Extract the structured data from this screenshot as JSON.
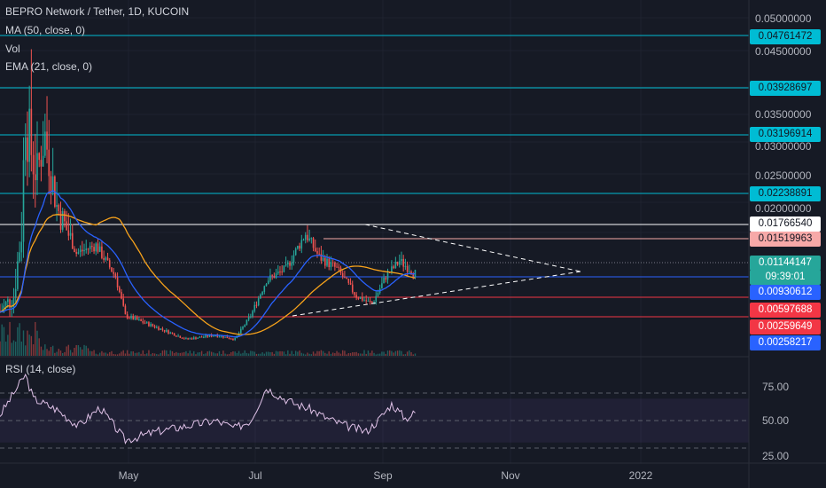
{
  "header": {
    "title": "BEPRO Network / Tether, 1D, KUCOIN",
    "indicators": [
      "MA (50, close, 0)",
      "Vol",
      "EMA (21, close, 0)"
    ],
    "rsi_label": "RSI (14, close)"
  },
  "colors": {
    "background": "#161a25",
    "up": "#26a69a",
    "down": "#ef5350",
    "ma": "#f7a21b",
    "ema": "#2962ff",
    "rsi": "#e0c2e8",
    "hline": "#00bcd4",
    "trend": "#ffffff"
  },
  "price_tags": [
    {
      "label": "0.04761472",
      "bg": "#00bcd4",
      "fg": "#131722"
    },
    {
      "label": "0.03928697",
      "bg": "#00bcd4",
      "fg": "#131722"
    },
    {
      "label": "0.03196914",
      "bg": "#00bcd4",
      "fg": "#131722"
    },
    {
      "label": "0.02238891",
      "bg": "#00bcd4",
      "fg": "#131722"
    },
    {
      "label": "0.01766540",
      "bg": "#ffffff",
      "fg": "#131722"
    },
    {
      "label": "0.01519963",
      "bg": "#f7a9a8",
      "fg": "#131722"
    },
    {
      "label": "0.01144147",
      "bg": "#26a69a",
      "fg": "#ffffff"
    },
    {
      "label": "09:39:01",
      "bg": "#26a69a",
      "fg": "#ffffff"
    },
    {
      "label": "0.00930612",
      "bg": "#2962ff",
      "fg": "#ffffff"
    },
    {
      "label": "0.00597688",
      "bg": "#f23645",
      "fg": "#ffffff"
    },
    {
      "label": "0.00259649",
      "bg": "#f23645",
      "fg": "#ffffff"
    },
    {
      "label": "0.00258217",
      "bg": "#2962ff",
      "fg": "#ffffff"
    }
  ],
  "chart_data": [
    {
      "type": "candlestick",
      "title": "BEPRO Network / Tether, 1D, KUCOIN",
      "y_ticks": [
        "0.05000000",
        "0.04500000",
        "0.03500000",
        "0.03000000",
        "0.02500000",
        "0.02000000"
      ],
      "x_ticks": [
        "May",
        "Jul",
        "Sep",
        "Nov",
        "2022"
      ],
      "price_range": [
        0.0,
        0.052
      ],
      "horizontal_levels": [
        {
          "value": 0.04761472,
          "color": "#00bcd4"
        },
        {
          "value": 0.03928697,
          "color": "#00bcd4"
        },
        {
          "value": 0.03196914,
          "color": "#00bcd4"
        },
        {
          "value": 0.02238891,
          "color": "#00bcd4"
        },
        {
          "value": 0.0176654,
          "color": "#ffffff"
        },
        {
          "value": 0.01519963,
          "color": "#f7a9a8"
        },
        {
          "value": 0.00930612,
          "color": "#2962ff"
        },
        {
          "value": 0.00597688,
          "color": "#f23645"
        },
        {
          "value": 0.00259649,
          "color": "#f23645"
        }
      ],
      "last_price": 0.01144147,
      "approx_close_path": [
        {
          "date": "2021-03-22",
          "close": 0.0065
        },
        {
          "date": "2021-03-29",
          "close": 0.0085
        },
        {
          "date": "2021-04-02",
          "close": 0.017
        },
        {
          "date": "2021-04-04",
          "close": 0.033
        },
        {
          "date": "2021-04-06",
          "close": 0.028
        },
        {
          "date": "2021-04-10",
          "close": 0.0245
        },
        {
          "date": "2021-04-14",
          "close": 0.029
        },
        {
          "date": "2021-04-20",
          "close": 0.02
        },
        {
          "date": "2021-04-30",
          "close": 0.014
        },
        {
          "date": "2021-05-10",
          "close": 0.015
        },
        {
          "date": "2021-05-20",
          "close": 0.011
        },
        {
          "date": "2021-05-25",
          "close": 0.006
        },
        {
          "date": "2021-06-10",
          "close": 0.0045
        },
        {
          "date": "2021-06-25",
          "close": 0.003
        },
        {
          "date": "2021-07-10",
          "close": 0.0035
        },
        {
          "date": "2021-07-20",
          "close": 0.003
        },
        {
          "date": "2021-07-28",
          "close": 0.006
        },
        {
          "date": "2021-08-05",
          "close": 0.0105
        },
        {
          "date": "2021-08-15",
          "close": 0.012
        },
        {
          "date": "2021-08-25",
          "close": 0.0165
        },
        {
          "date": "2021-09-01",
          "close": 0.0135
        },
        {
          "date": "2021-09-10",
          "close": 0.012
        },
        {
          "date": "2021-09-20",
          "close": 0.0085
        },
        {
          "date": "2021-09-28",
          "close": 0.0075
        },
        {
          "date": "2021-10-05",
          "close": 0.011
        },
        {
          "date": "2021-10-12",
          "close": 0.013
        },
        {
          "date": "2021-10-20",
          "close": 0.0114
        }
      ],
      "moving_averages": [
        {
          "name": "MA (50, close, 0)",
          "color": "#f7a21b"
        },
        {
          "name": "EMA (21, close, 0)",
          "color": "#2962ff"
        }
      ]
    },
    {
      "type": "line",
      "title": "RSI (14, close)",
      "y_ticks": [
        "75.00",
        "50.00",
        "25.00"
      ],
      "band": [
        30,
        70
      ],
      "ylim": [
        20,
        95
      ],
      "x": [
        "2021-03-22",
        "2021-04-04",
        "2021-04-08",
        "2021-04-20",
        "2021-05-01",
        "2021-05-12",
        "2021-05-25",
        "2021-06-10",
        "2021-06-25",
        "2021-07-10",
        "2021-07-20",
        "2021-07-28",
        "2021-08-05",
        "2021-08-12",
        "2021-08-20",
        "2021-08-28",
        "2021-09-05",
        "2021-09-15",
        "2021-09-25",
        "2021-10-01",
        "2021-10-08",
        "2021-10-15",
        "2021-10-20"
      ],
      "values": [
        55,
        92,
        70,
        60,
        45,
        62,
        32,
        40,
        45,
        50,
        43,
        50,
        80,
        72,
        65,
        60,
        52,
        45,
        40,
        50,
        65,
        52,
        57
      ]
    }
  ]
}
